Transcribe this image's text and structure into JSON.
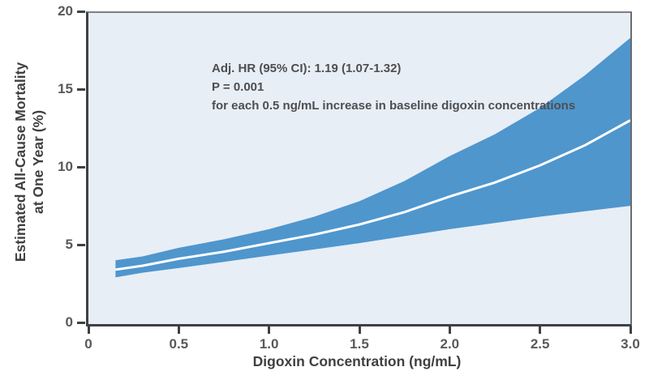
{
  "figure": {
    "y_axis_title_line1": "Estimated All-Cause Mortality",
    "y_axis_title_line2": "at One Year (%)",
    "x_axis_title": "Digoxin Concentration (ng/mL)",
    "annotation": {
      "line1": "Adj. HR (95% CI): 1.19 (1.07-1.32)",
      "line2": "P = 0.001",
      "line3": "for each 0.5 ng/mL increase in baseline digoxin concentrations"
    }
  },
  "chart_data": {
    "type": "area",
    "title": "",
    "xlabel": "Digoxin Concentration (ng/mL)",
    "ylabel": "Estimated All-Cause Mortality at One Year (%)",
    "xlim": [
      0,
      3
    ],
    "ylim": [
      0,
      20
    ],
    "grid": false,
    "legend": "none",
    "x_ticks": [
      {
        "label": "0",
        "value": 0
      },
      {
        "label": "0.5",
        "value": 0.5
      },
      {
        "label": "1.0",
        "value": 1.0
      },
      {
        "label": "1.5",
        "value": 1.5
      },
      {
        "label": "2.0",
        "value": 2.0
      },
      {
        "label": "2.5",
        "value": 2.5
      },
      {
        "label": "3.0",
        "value": 3.0
      }
    ],
    "y_ticks": [
      {
        "label": "0",
        "value": 0
      },
      {
        "label": "5",
        "value": 5
      },
      {
        "label": "10",
        "value": 10
      },
      {
        "label": "15",
        "value": 15
      },
      {
        "label": "20",
        "value": 20
      }
    ],
    "x": [
      0.15,
      0.3,
      0.5,
      0.75,
      1.0,
      1.25,
      1.5,
      1.75,
      2.0,
      2.25,
      2.5,
      2.75,
      3.0
    ],
    "series": [
      {
        "name": "Adjusted mortality estimate",
        "values": [
          3.5,
          3.75,
          4.2,
          4.65,
          5.2,
          5.75,
          6.4,
          7.2,
          8.2,
          9.1,
          10.2,
          11.5,
          13.1
        ]
      },
      {
        "name": "95% CI lower bound",
        "values": [
          3.0,
          3.3,
          3.6,
          4.0,
          4.4,
          4.8,
          5.2,
          5.65,
          6.1,
          6.5,
          6.9,
          7.25,
          7.6
        ]
      },
      {
        "name": "95% CI upper bound",
        "values": [
          4.1,
          4.35,
          4.9,
          5.45,
          6.1,
          6.9,
          7.9,
          9.2,
          10.8,
          12.2,
          13.9,
          16.0,
          18.4
        ]
      }
    ],
    "annotation_text": "Adj. HR (95% CI): 1.19 (1.07-1.32) P = 0.001 for each 0.5 ng/mL increase in baseline digoxin concentrations",
    "colors": {
      "ci_band": "#4f96cd",
      "estimate_line": "#ffffff",
      "plot_background": "#e8eef6",
      "axis_frame": "#3f4042",
      "tick_label": "#58595b",
      "annotation_text": "#4d4e50"
    }
  }
}
